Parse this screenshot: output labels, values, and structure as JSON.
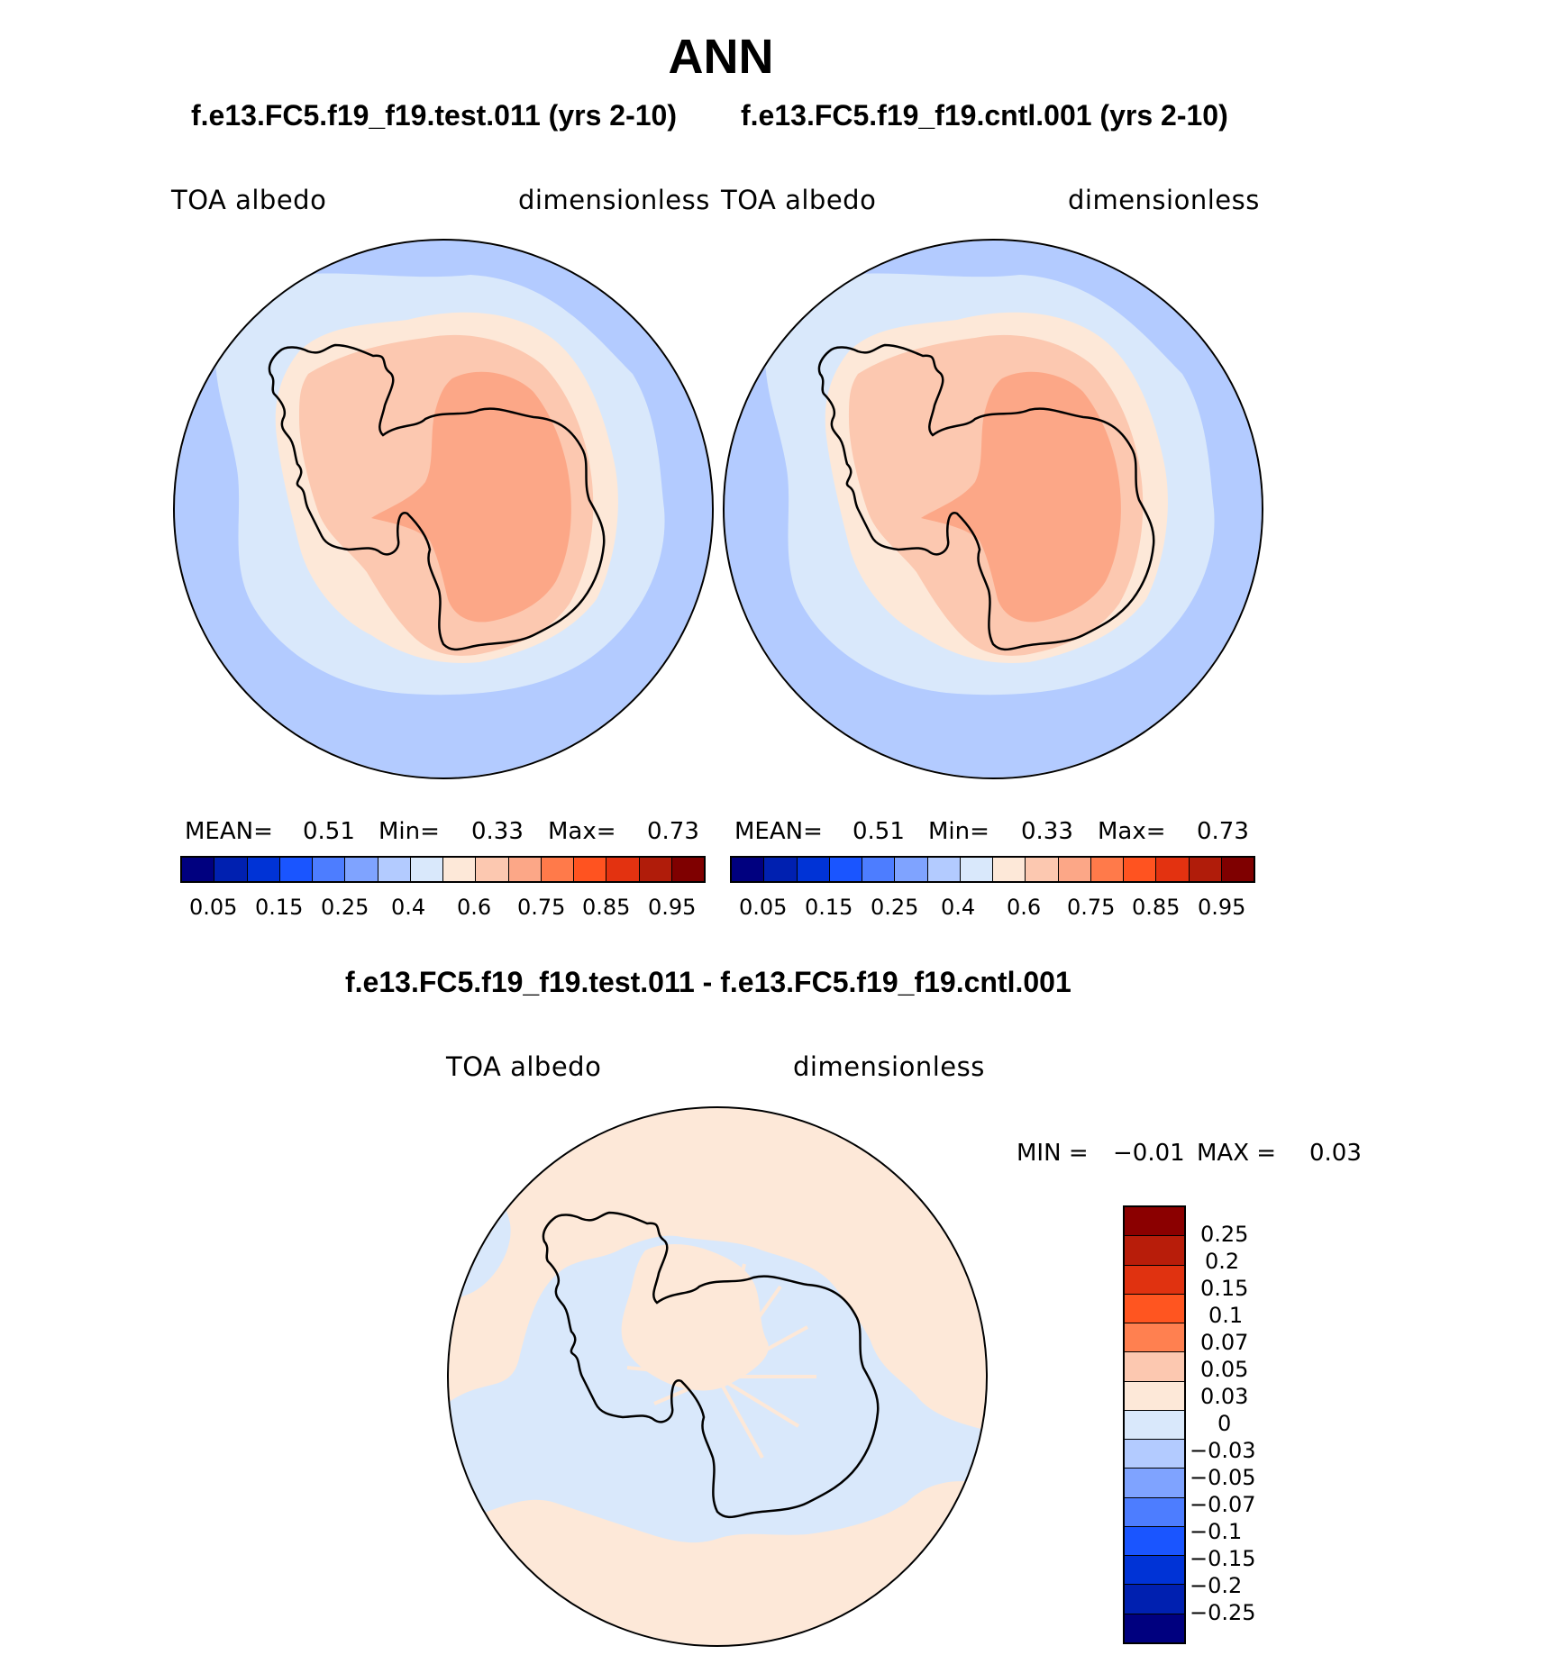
{
  "figure": {
    "title": "ANN",
    "test_case_title": "f.e13.FC5.f19_f19.test.011 (yrs 2-10)",
    "control_case_title": "f.e13.FC5.f19_f19.cntl.001 (yrs 2-10)",
    "difference_title": "f.e13.FC5.f19_f19.test.011 - f.e13.FC5.f19_f19.cntl.001"
  },
  "panels": {
    "test": {
      "variable": "TOA  albedo",
      "units": "dimensionless",
      "mean_label": "MEAN=",
      "mean_value": "0.51",
      "min_label": "Min=",
      "min_value": "0.33",
      "max_label": "Max=",
      "max_value": "0.73"
    },
    "control": {
      "variable": "TOA  albedo",
      "units": "dimensionless",
      "mean_label": "MEAN=",
      "mean_value": "0.51",
      "min_label": "Min=",
      "min_value": "0.33",
      "max_label": "Max=",
      "max_value": "0.73"
    },
    "difference": {
      "variable": "TOA  albedo",
      "units": "dimensionless",
      "min_label": "MIN =",
      "min_value": "−0.01",
      "max_label": "MAX =",
      "max_value": "0.03"
    }
  },
  "colorbars": {
    "absolute": {
      "colors": [
        "#00007f",
        "#0020b0",
        "#0033d6",
        "#1a55ff",
        "#4d7dff",
        "#7fa3ff",
        "#b3cbff",
        "#d9e8fb",
        "#fde8d8",
        "#fcc8b0",
        "#fca787",
        "#ff7a4a",
        "#ff5320",
        "#e33210",
        "#b01c0a",
        "#7f0000"
      ],
      "tick_labels": [
        "0.05",
        "0.15",
        "0.25",
        "0.4",
        "0.6",
        "0.75",
        "0.85",
        "0.95"
      ]
    },
    "difference": {
      "colors_top_to_bottom": [
        "#8b0000",
        "#b81d0a",
        "#e03210",
        "#ff5520",
        "#ff8050",
        "#fcc8b0",
        "#fde8d8",
        "#d9e8fb",
        "#b3cbff",
        "#7fa3ff",
        "#4d7dff",
        "#1a55ff",
        "#0033d6",
        "#0020b0",
        "#00007f"
      ],
      "tick_labels": [
        "0.25",
        "0.2",
        "0.15",
        "0.1",
        "0.07",
        "0.05",
        "0.03",
        "0",
        "−0.03",
        "−0.05",
        "−0.07",
        "−0.1",
        "−0.15",
        "−0.2",
        "−0.25"
      ]
    }
  },
  "map_colors": {
    "outer_ocean": "#b3cbff",
    "sea_ice": "#d9e8fb",
    "pack_edge": "#fde8d8",
    "coast_band": "#fcc8b0",
    "interior": "#fca787",
    "diff_positive": "#fde8d8",
    "diff_negative": "#d9e8fb"
  }
}
